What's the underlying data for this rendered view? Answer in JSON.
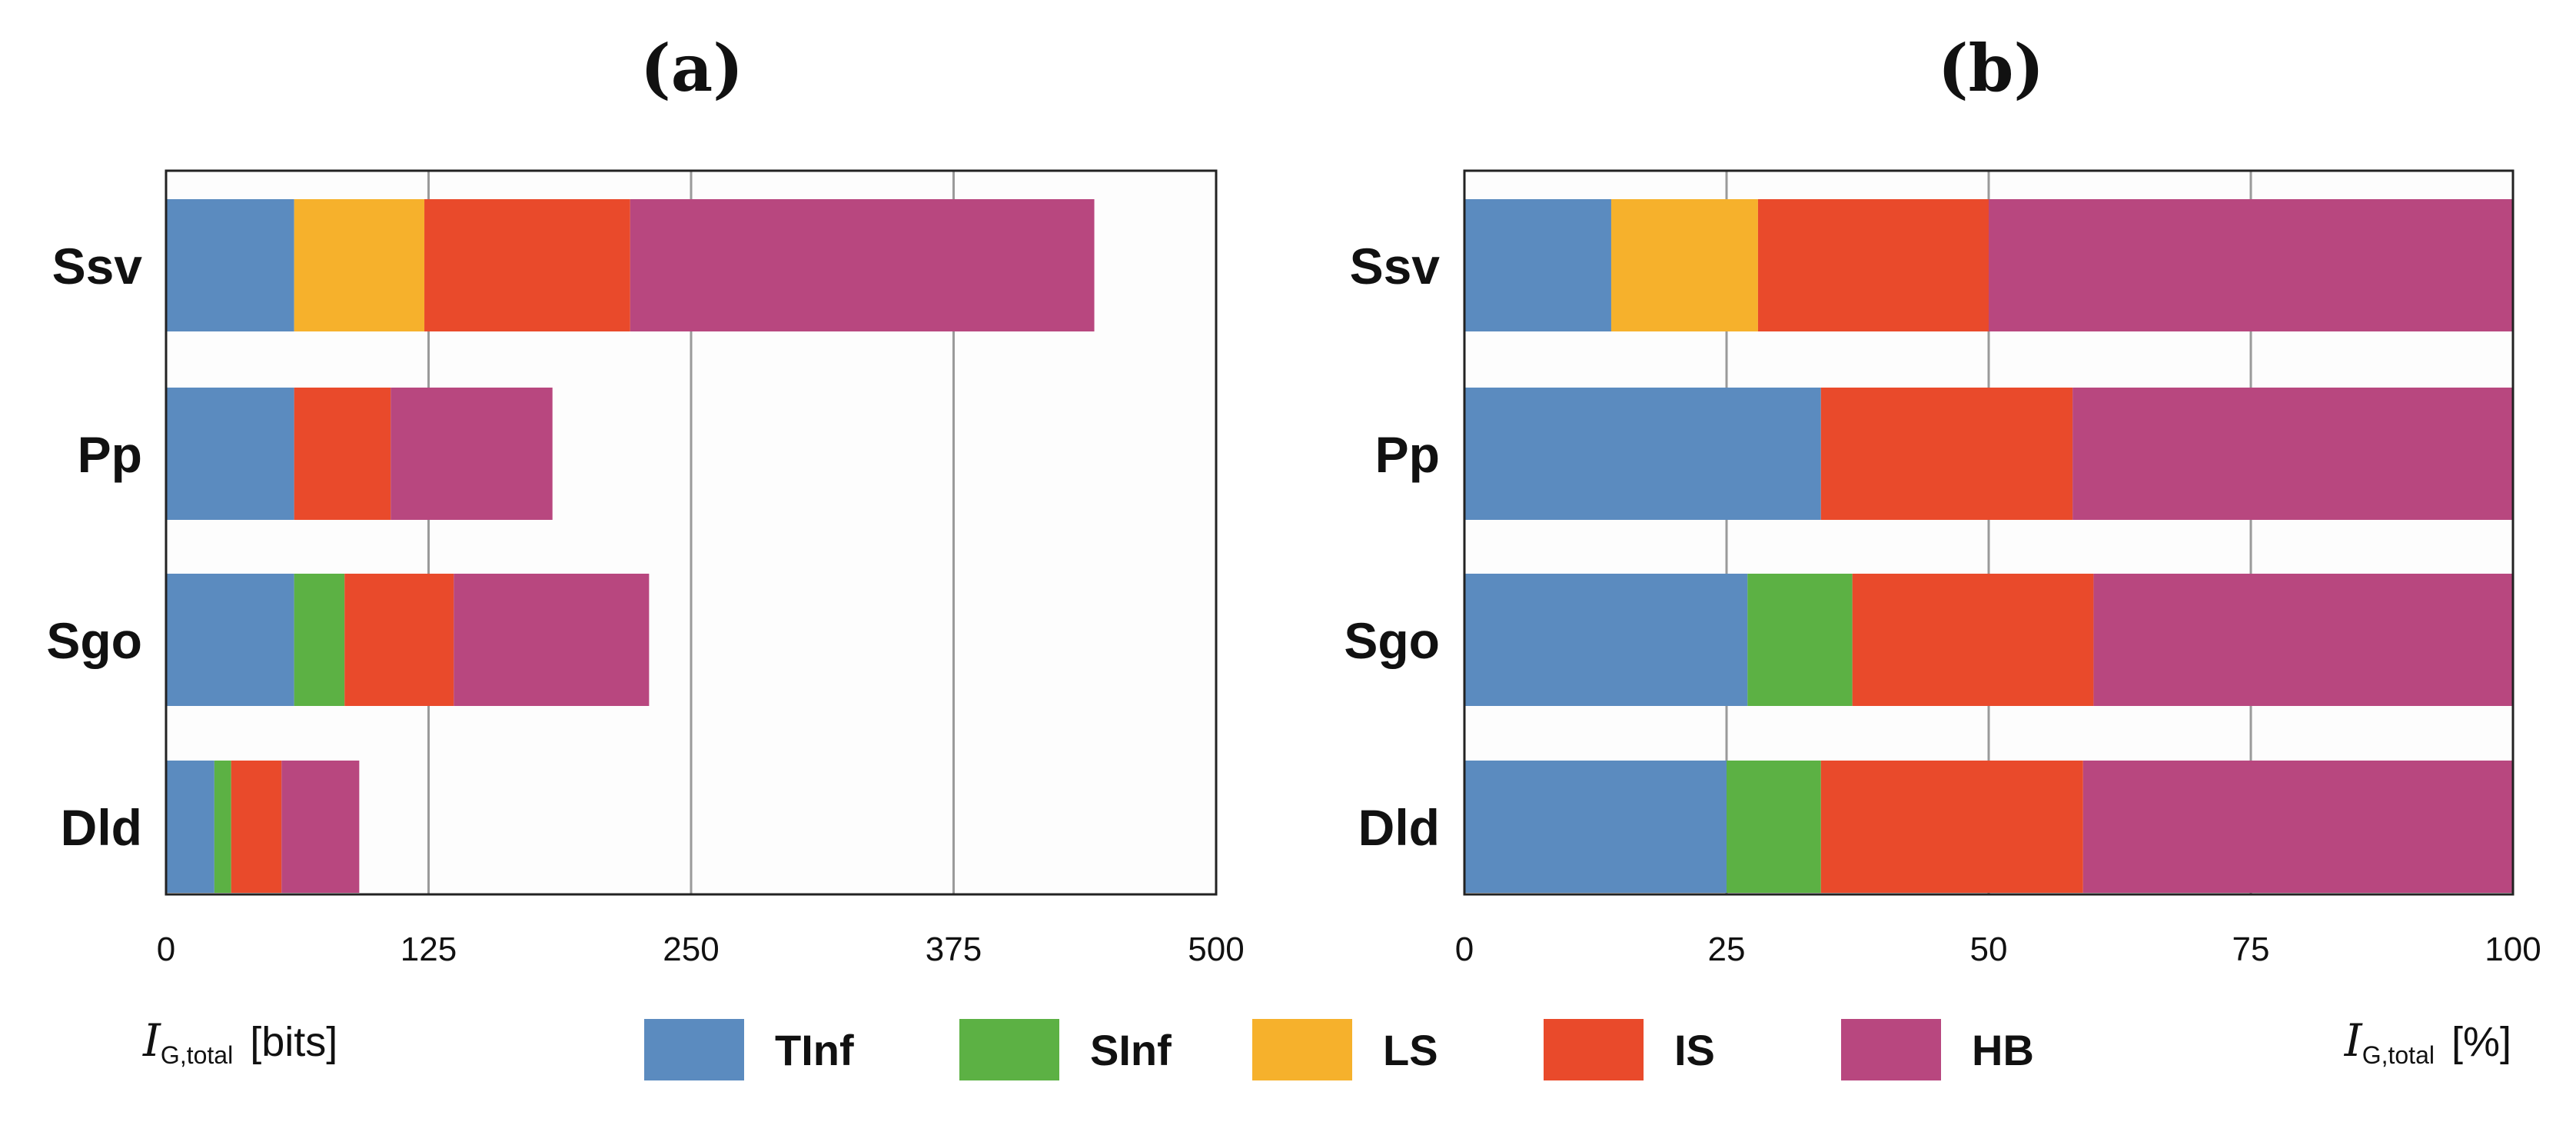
{
  "legend": [
    {
      "key": "TInf",
      "color": "#5b8bbf"
    },
    {
      "key": "SInf",
      "color": "#5cb144"
    },
    {
      "key": "LS",
      "color": "#f6b12c"
    },
    {
      "key": "IS",
      "color": "#e94a2b"
    },
    {
      "key": "HB",
      "color": "#b8477f"
    }
  ],
  "chart_data": [
    {
      "type": "bar",
      "orientation": "horizontal",
      "stacked": true,
      "title": "(a)",
      "xlabel": {
        "symbol": "I",
        "subscript": "G,total",
        "unit": "[bits]"
      },
      "xlim": [
        0,
        500
      ],
      "xticks": [
        "0",
        "125",
        "250",
        "375",
        "500"
      ],
      "grid": true,
      "categories": [
        "Ssv",
        "Pp",
        "Sgo",
        "Dld"
      ],
      "series": [
        {
          "name": "TInf",
          "values": [
            61,
            61,
            61,
            23
          ]
        },
        {
          "name": "SInf",
          "values": [
            0,
            0,
            24,
            8
          ]
        },
        {
          "name": "LS",
          "values": [
            62,
            0,
            0,
            0
          ]
        },
        {
          "name": "IS",
          "values": [
            98,
            46,
            52,
            24
          ]
        },
        {
          "name": "HB",
          "values": [
            221,
            77,
            93,
            37
          ]
        }
      ]
    },
    {
      "type": "bar",
      "orientation": "horizontal",
      "stacked": true,
      "title": "(b)",
      "xlabel": {
        "symbol": "I",
        "subscript": "G,total",
        "unit": "[%]"
      },
      "xlim": [
        0,
        100
      ],
      "xticks": [
        "0",
        "25",
        "50",
        "75",
        "100"
      ],
      "grid": true,
      "categories": [
        "Ssv",
        "Pp",
        "Sgo",
        "Dld"
      ],
      "series": [
        {
          "name": "TInf",
          "values": [
            14,
            34,
            27,
            25
          ]
        },
        {
          "name": "SInf",
          "values": [
            0,
            0,
            10,
            9
          ]
        },
        {
          "name": "LS",
          "values": [
            14,
            0,
            0,
            0
          ]
        },
        {
          "name": "IS",
          "values": [
            22,
            24,
            23,
            25
          ]
        },
        {
          "name": "HB",
          "values": [
            50,
            42,
            40,
            41
          ]
        }
      ]
    }
  ]
}
